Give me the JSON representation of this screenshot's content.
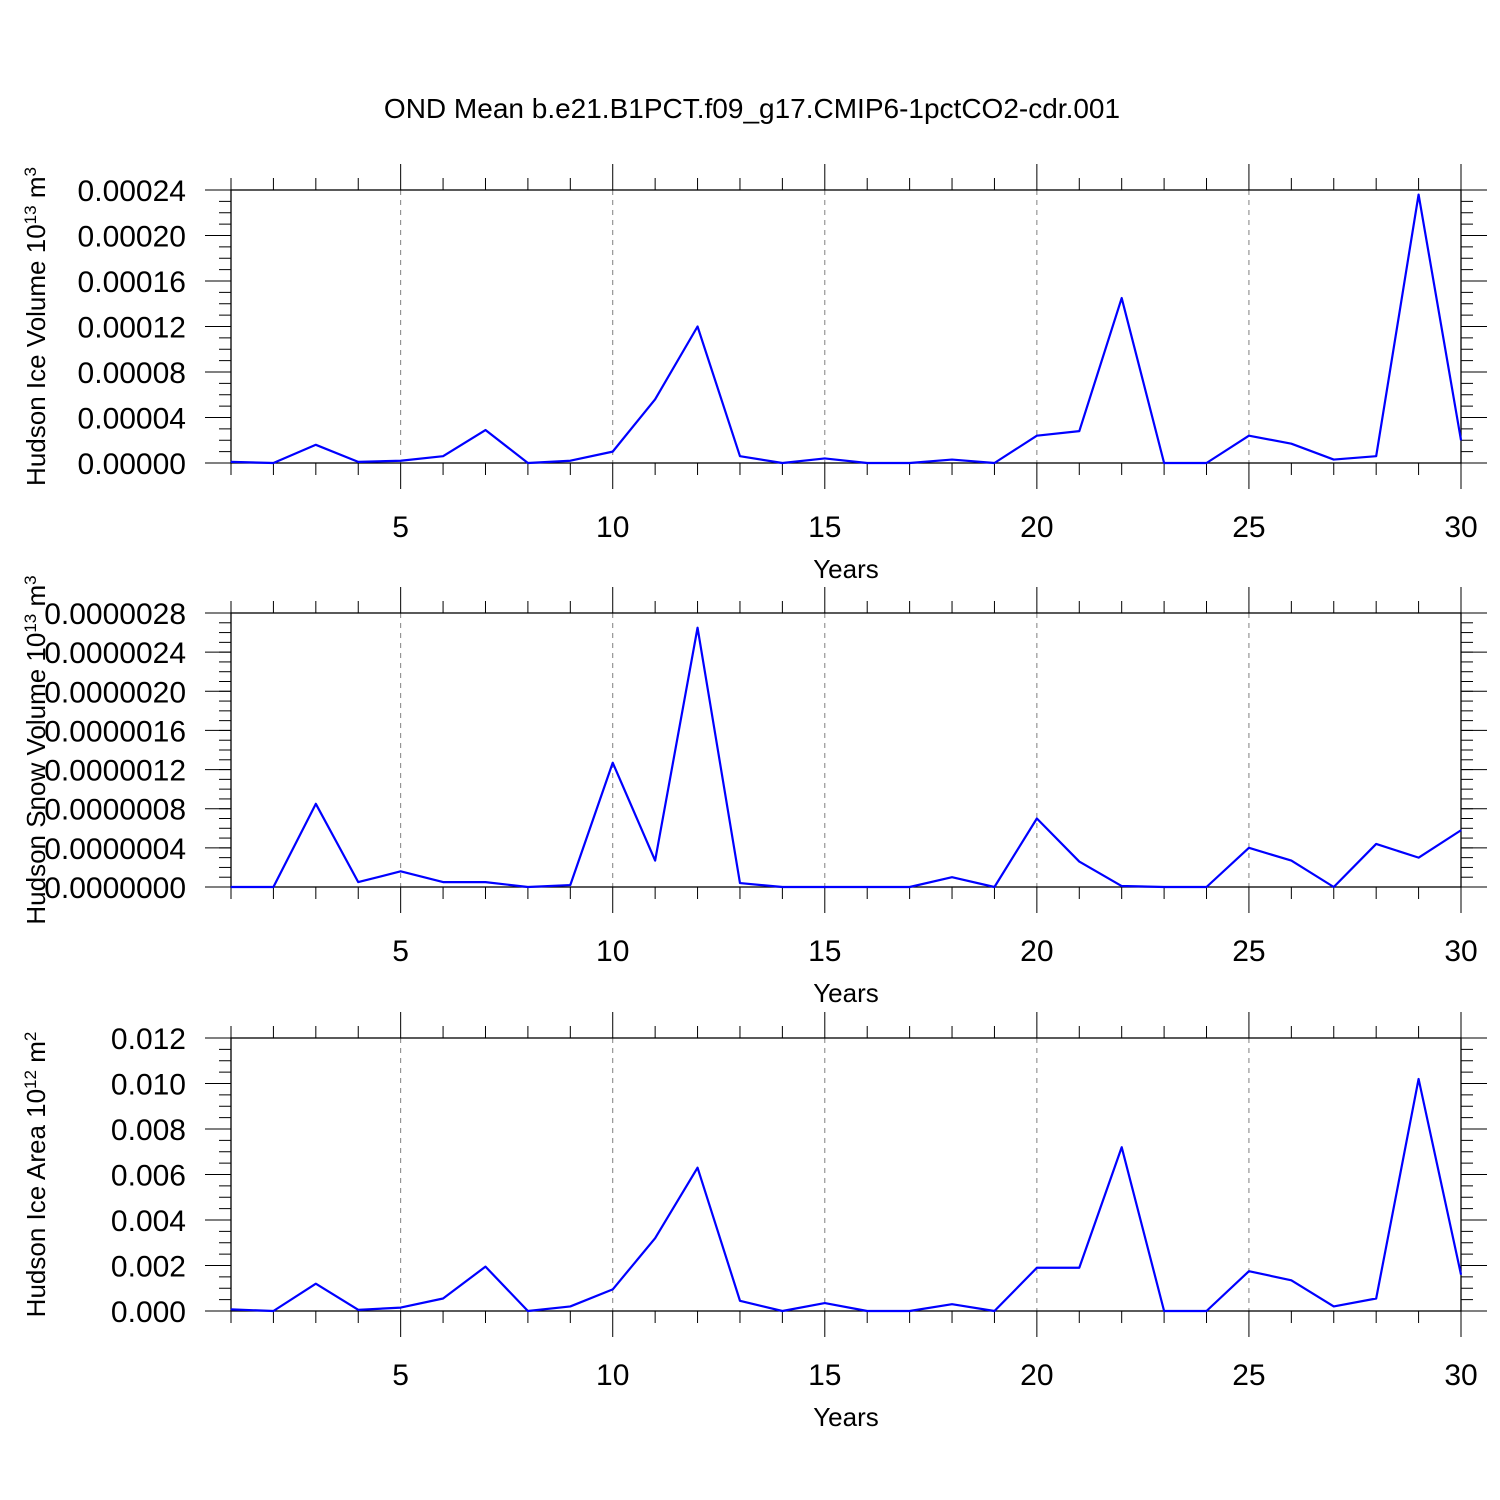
{
  "title": "OND Mean b.e21.B1PCT.f09_g17.CMIP6-1pctCO2-cdr.001",
  "colors": {
    "line": "#0000ff",
    "grid": "#808080",
    "axis": "#000000"
  },
  "chart_data": [
    {
      "type": "line",
      "xlabel": "Years",
      "ylabel": "Hudson Ice Volume 10",
      "ylabel_exp": "13",
      "ylabel_unit": " m",
      "ylabel_unit_exp": "3",
      "xlim": [
        1,
        30
      ],
      "ylim": [
        0,
        0.00024
      ],
      "x_ticks": [
        5,
        10,
        15,
        20,
        25,
        30
      ],
      "y_ticks": [
        0,
        4e-05,
        8e-05,
        0.00012,
        0.00016,
        0.0002,
        0.00024
      ],
      "y_tick_labels": [
        "0.00000",
        "0.00004",
        "0.00008",
        "0.00012",
        "0.00016",
        "0.00020",
        "0.00024"
      ],
      "y_minor_step": 1e-05,
      "grid": "x-dashed",
      "x": [
        1,
        2,
        3,
        4,
        5,
        6,
        7,
        8,
        9,
        10,
        11,
        12,
        13,
        14,
        15,
        16,
        17,
        18,
        19,
        20,
        21,
        22,
        23,
        24,
        25,
        26,
        27,
        28,
        29,
        30
      ],
      "values": [
        1e-06,
        0.0,
        1.6e-05,
        1e-06,
        2e-06,
        6e-06,
        2.9e-05,
        0.0,
        2e-06,
        1e-05,
        5.6e-05,
        0.00012,
        6e-06,
        0.0,
        4e-06,
        0.0,
        0.0,
        3e-06,
        0.0,
        2.4e-05,
        2.8e-05,
        0.000145,
        0.0,
        0.0,
        2.4e-05,
        1.7e-05,
        3e-06,
        6e-06,
        0.000236,
        2e-05
      ]
    },
    {
      "type": "line",
      "xlabel": "Years",
      "ylabel": "Hudson Snow Volume 10",
      "ylabel_exp": "13",
      "ylabel_unit": " m",
      "ylabel_unit_exp": "3",
      "xlim": [
        1,
        30
      ],
      "ylim": [
        0,
        2.8e-06
      ],
      "x_ticks": [
        5,
        10,
        15,
        20,
        25,
        30
      ],
      "y_ticks": [
        0,
        4e-07,
        8e-07,
        1.2e-06,
        1.6e-06,
        2e-06,
        2.4e-06,
        2.8e-06
      ],
      "y_tick_labels": [
        "0.0000000",
        "0.0000004",
        "0.0000008",
        "0.0000012",
        "0.0000016",
        "0.0000020",
        "0.0000024",
        "0.0000028"
      ],
      "y_minor_step": 1e-07,
      "grid": "x-dashed",
      "x": [
        1,
        2,
        3,
        4,
        5,
        6,
        7,
        8,
        9,
        10,
        11,
        12,
        13,
        14,
        15,
        16,
        17,
        18,
        19,
        20,
        21,
        22,
        23,
        24,
        25,
        26,
        27,
        28,
        29,
        30
      ],
      "values": [
        0.0,
        0.0,
        8.5e-07,
        5e-08,
        1.6e-07,
        5e-08,
        5e-08,
        0.0,
        2e-08,
        1.27e-06,
        2.7e-07,
        2.65e-06,
        4e-08,
        0.0,
        0.0,
        0.0,
        0.0,
        1e-07,
        0.0,
        7e-07,
        2.6e-07,
        1e-08,
        0.0,
        0.0,
        4e-07,
        2.7e-07,
        0.0,
        4.4e-07,
        3e-07,
        5.8e-07
      ]
    },
    {
      "type": "line",
      "xlabel": "Years",
      "ylabel": "Hudson Ice Area 10",
      "ylabel_exp": "12",
      "ylabel_unit": " m",
      "ylabel_unit_exp": "2",
      "xlim": [
        1,
        30
      ],
      "ylim": [
        0,
        0.012
      ],
      "x_ticks": [
        5,
        10,
        15,
        20,
        25,
        30
      ],
      "y_ticks": [
        0,
        0.002,
        0.004,
        0.006,
        0.008,
        0.01,
        0.012
      ],
      "y_tick_labels": [
        "0.000",
        "0.002",
        "0.004",
        "0.006",
        "0.008",
        "0.010",
        "0.012"
      ],
      "y_minor_step": 0.0005,
      "grid": "x-dashed",
      "x": [
        1,
        2,
        3,
        4,
        5,
        6,
        7,
        8,
        9,
        10,
        11,
        12,
        13,
        14,
        15,
        16,
        17,
        18,
        19,
        20,
        21,
        22,
        23,
        24,
        25,
        26,
        27,
        28,
        29,
        30
      ],
      "values": [
        7e-05,
        0.0,
        0.0012,
        5e-05,
        0.00015,
        0.00055,
        0.00195,
        0.0,
        0.0002,
        0.00095,
        0.0032,
        0.0063,
        0.00045,
        0.0,
        0.00035,
        0.0,
        0.0,
        0.0003,
        0.0,
        0.0019,
        0.0019,
        0.0072,
        0.0,
        0.0,
        0.00175,
        0.00135,
        0.0002,
        0.00055,
        0.0102,
        0.0016
      ]
    }
  ]
}
